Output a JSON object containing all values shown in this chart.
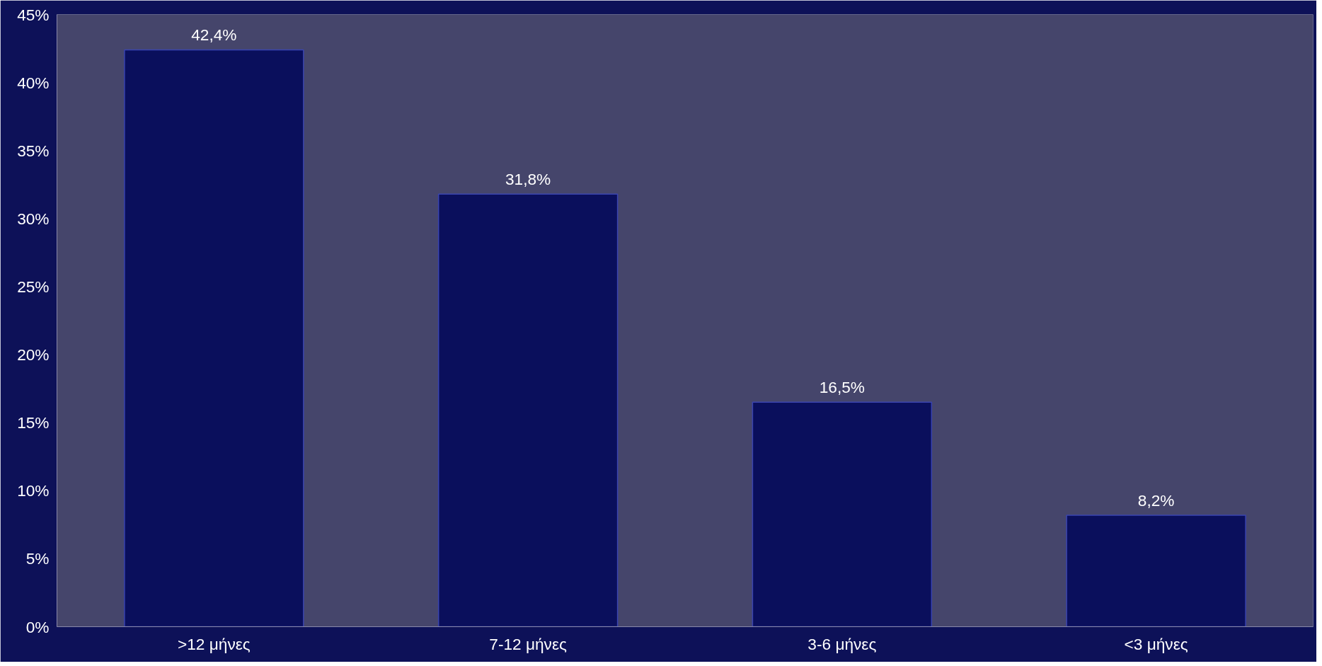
{
  "chart_data": {
    "type": "bar",
    "categories": [
      ">12 μήνες",
      "7-12 μήνες",
      "3-6 μήνες",
      "<3 μήνες"
    ],
    "values": [
      42.4,
      31.8,
      16.5,
      8.2
    ],
    "color": "#0a0f5c",
    "value_labels": [
      "42,4%",
      "31,8%",
      "16,5%",
      "8,2%"
    ],
    "ylim": [
      0,
      45
    ],
    "yticks": [
      {
        "value": 0,
        "label": "0%"
      },
      {
        "value": 5,
        "label": "5%"
      },
      {
        "value": 10,
        "label": "10%"
      },
      {
        "value": 15,
        "label": "15%"
      },
      {
        "value": 20,
        "label": "20%"
      },
      {
        "value": 25,
        "label": "25%"
      },
      {
        "value": 30,
        "label": "30%"
      },
      {
        "value": 35,
        "label": "35%"
      },
      {
        "value": 40,
        "label": "40%"
      },
      {
        "value": 45,
        "label": "45%"
      }
    ],
    "grid": false
  }
}
